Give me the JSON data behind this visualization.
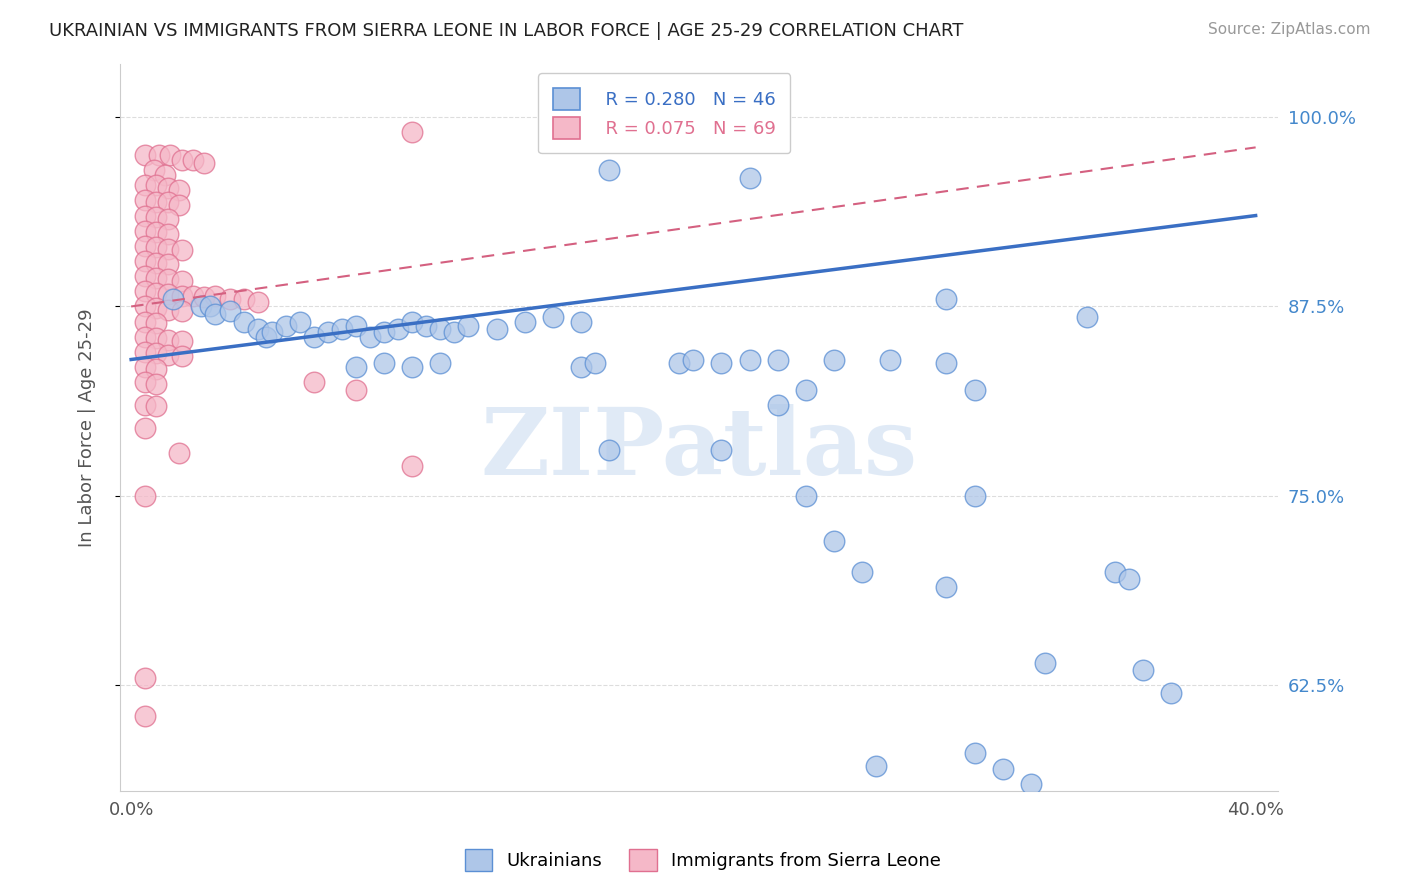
{
  "title": "UKRAINIAN VS IMMIGRANTS FROM SIERRA LEONE IN LABOR FORCE | AGE 25-29 CORRELATION CHART",
  "source": "Source: ZipAtlas.com",
  "ylabel": "In Labor Force | Age 25-29",
  "xlabel_bottom_left": "0.0%",
  "xlabel_bottom_right": "40.0%",
  "yaxis_labels": [
    "100.0%",
    "87.5%",
    "75.0%",
    "62.5%"
  ],
  "ymin": 0.555,
  "ymax": 1.035,
  "xmin": -0.004,
  "xmax": 0.408,
  "legend_R_blue": "R = 0.280",
  "legend_N_blue": "N = 46",
  "legend_R_pink": "R = 0.075",
  "legend_N_pink": "N = 69",
  "watermark": "ZIPatlas",
  "blue_scatter": [
    [
      0.015,
      0.88
    ],
    [
      0.025,
      0.875
    ],
    [
      0.028,
      0.875
    ],
    [
      0.03,
      0.87
    ],
    [
      0.035,
      0.872
    ],
    [
      0.04,
      0.865
    ],
    [
      0.045,
      0.86
    ],
    [
      0.048,
      0.855
    ],
    [
      0.05,
      0.858
    ],
    [
      0.055,
      0.862
    ],
    [
      0.06,
      0.865
    ],
    [
      0.065,
      0.855
    ],
    [
      0.07,
      0.858
    ],
    [
      0.075,
      0.86
    ],
    [
      0.08,
      0.862
    ],
    [
      0.085,
      0.855
    ],
    [
      0.09,
      0.858
    ],
    [
      0.095,
      0.86
    ],
    [
      0.1,
      0.865
    ],
    [
      0.105,
      0.862
    ],
    [
      0.11,
      0.86
    ],
    [
      0.115,
      0.858
    ],
    [
      0.12,
      0.862
    ],
    [
      0.13,
      0.86
    ],
    [
      0.14,
      0.865
    ],
    [
      0.15,
      0.868
    ],
    [
      0.16,
      0.865
    ],
    [
      0.08,
      0.835
    ],
    [
      0.09,
      0.838
    ],
    [
      0.1,
      0.835
    ],
    [
      0.11,
      0.838
    ],
    [
      0.16,
      0.835
    ],
    [
      0.165,
      0.838
    ],
    [
      0.195,
      0.838
    ],
    [
      0.2,
      0.84
    ],
    [
      0.21,
      0.838
    ],
    [
      0.22,
      0.84
    ],
    [
      0.23,
      0.84
    ],
    [
      0.25,
      0.84
    ],
    [
      0.27,
      0.84
    ],
    [
      0.29,
      0.838
    ],
    [
      0.17,
      0.78
    ],
    [
      0.21,
      0.78
    ],
    [
      0.24,
      0.75
    ],
    [
      0.3,
      0.75
    ],
    [
      0.25,
      0.72
    ],
    [
      0.26,
      0.7
    ]
  ],
  "blue_outliers": [
    [
      0.17,
      0.965
    ],
    [
      0.22,
      0.96
    ],
    [
      0.29,
      0.88
    ],
    [
      0.3,
      0.82
    ],
    [
      0.24,
      0.82
    ],
    [
      0.23,
      0.81
    ],
    [
      0.34,
      0.868
    ],
    [
      0.35,
      0.7
    ],
    [
      0.355,
      0.695
    ],
    [
      0.36,
      0.635
    ],
    [
      0.37,
      0.62
    ],
    [
      0.29,
      0.69
    ],
    [
      0.3,
      0.58
    ],
    [
      0.31,
      0.57
    ],
    [
      0.32,
      0.56
    ],
    [
      0.325,
      0.64
    ],
    [
      0.265,
      0.572
    ]
  ],
  "pink_scatter": [
    [
      0.005,
      0.975
    ],
    [
      0.01,
      0.975
    ],
    [
      0.014,
      0.975
    ],
    [
      0.018,
      0.972
    ],
    [
      0.022,
      0.972
    ],
    [
      0.026,
      0.97
    ],
    [
      0.008,
      0.965
    ],
    [
      0.012,
      0.962
    ],
    [
      0.005,
      0.955
    ],
    [
      0.009,
      0.955
    ],
    [
      0.013,
      0.953
    ],
    [
      0.017,
      0.952
    ],
    [
      0.005,
      0.945
    ],
    [
      0.009,
      0.944
    ],
    [
      0.013,
      0.944
    ],
    [
      0.017,
      0.942
    ],
    [
      0.005,
      0.935
    ],
    [
      0.009,
      0.934
    ],
    [
      0.013,
      0.933
    ],
    [
      0.005,
      0.925
    ],
    [
      0.009,
      0.924
    ],
    [
      0.013,
      0.923
    ],
    [
      0.005,
      0.915
    ],
    [
      0.009,
      0.914
    ],
    [
      0.013,
      0.913
    ],
    [
      0.018,
      0.912
    ],
    [
      0.005,
      0.905
    ],
    [
      0.009,
      0.904
    ],
    [
      0.013,
      0.903
    ],
    [
      0.005,
      0.895
    ],
    [
      0.009,
      0.894
    ],
    [
      0.013,
      0.893
    ],
    [
      0.018,
      0.892
    ],
    [
      0.005,
      0.885
    ],
    [
      0.009,
      0.884
    ],
    [
      0.013,
      0.883
    ],
    [
      0.018,
      0.882
    ],
    [
      0.022,
      0.882
    ],
    [
      0.026,
      0.881
    ],
    [
      0.03,
      0.882
    ],
    [
      0.035,
      0.88
    ],
    [
      0.04,
      0.88
    ],
    [
      0.045,
      0.878
    ],
    [
      0.005,
      0.875
    ],
    [
      0.009,
      0.874
    ],
    [
      0.013,
      0.873
    ],
    [
      0.018,
      0.872
    ],
    [
      0.005,
      0.865
    ],
    [
      0.009,
      0.864
    ],
    [
      0.005,
      0.855
    ],
    [
      0.009,
      0.854
    ],
    [
      0.013,
      0.853
    ],
    [
      0.018,
      0.852
    ],
    [
      0.005,
      0.845
    ],
    [
      0.009,
      0.844
    ],
    [
      0.013,
      0.843
    ],
    [
      0.018,
      0.842
    ],
    [
      0.005,
      0.835
    ],
    [
      0.009,
      0.834
    ],
    [
      0.005,
      0.825
    ],
    [
      0.009,
      0.824
    ],
    [
      0.005,
      0.81
    ],
    [
      0.009,
      0.809
    ],
    [
      0.005,
      0.795
    ],
    [
      0.017,
      0.778
    ],
    [
      0.1,
      0.77
    ],
    [
      0.005,
      0.75
    ],
    [
      0.08,
      0.82
    ],
    [
      0.065,
      0.825
    ],
    [
      0.005,
      0.63
    ],
    [
      0.005,
      0.605
    ],
    [
      0.1,
      0.99
    ]
  ],
  "blue_color": "#aec6e8",
  "pink_color": "#f5b8c8",
  "blue_edge_color": "#5b8fd4",
  "pink_edge_color": "#e07090",
  "blue_line_color": "#3a6fc4",
  "pink_line_color": "#d46080",
  "grid_color": "#dddddd",
  "background_color": "#ffffff",
  "title_color": "#222222",
  "right_axis_color": "#4488cc"
}
